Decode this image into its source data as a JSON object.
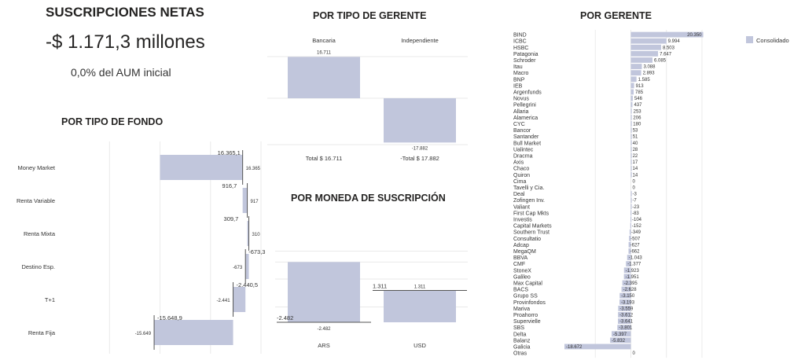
{
  "summary": {
    "title": "SUSCRIPCIONES NETAS",
    "amount": "-$ 1.171,3 millones",
    "pct": "0,0% del AUM inicial"
  },
  "sections": {
    "fondo_title": "POR TIPO DE FONDO",
    "gerente_tipo_title": "POR TIPO DE GERENTE",
    "moneda_title": "POR MONEDA DE SUSCRIPCIÓN",
    "gerente_title": "POR GERENTE"
  },
  "colors": {
    "bar": "#c1c6dc",
    "text": "#252423"
  },
  "chart_data": [
    {
      "id": "fondo",
      "type": "bar",
      "orientation": "horizontal-waterfall",
      "categories": [
        "Money Market",
        "Renta Variable",
        "Renta Mixta",
        "Destino Esp.",
        "T+1",
        "Renta Fija"
      ],
      "values": [
        16365.1,
        916.7,
        309.7,
        -673.3,
        -2440.5,
        -15648.9
      ],
      "data_labels": [
        "16.365,1",
        "916,7",
        "309,7",
        "-673,3",
        "-2.440,5",
        "-15.648,9"
      ],
      "small_labels": [
        "16.365",
        "917",
        "310",
        "-673",
        "-2.441",
        "-15.649"
      ]
    },
    {
      "id": "gerente_tipo",
      "type": "bar",
      "categories": [
        "Bancaria",
        "Independiente"
      ],
      "values": [
        16711,
        -17882
      ],
      "data_labels": [
        "16.711",
        "-17.882"
      ],
      "totals": [
        "Total $ 16.711",
        "-Total $ 17.882"
      ]
    },
    {
      "id": "moneda",
      "type": "bar",
      "categories": [
        "ARS",
        "USD"
      ],
      "values": [
        -2482,
        1311
      ],
      "data_labels": [
        "-2.482",
        "1.311"
      ],
      "small_labels": [
        "-2.482",
        "1.311"
      ]
    },
    {
      "id": "gerente",
      "type": "bar",
      "orientation": "horizontal",
      "legend": [
        "Consolidado"
      ],
      "legend_position": "top-right",
      "categories": [
        "BIND",
        "ICBC",
        "HSBC",
        "Patagonia",
        "Schroder",
        "Itau",
        "Macro",
        "BNP",
        "IEB",
        "Argenfunds",
        "Novus",
        "Pellegrini",
        "Allaria",
        "Alamerica",
        "CYC",
        "Bancor",
        "Santander",
        "Bull Market",
        "Ualintec",
        "Dracma",
        "Axis",
        "Chaco",
        "Quiron",
        "Cima",
        "Tavelli y Cia.",
        "Deal",
        "Zofingen Inv.",
        "Valiant",
        "First Cap Mkts",
        "Investis",
        "Capital Markets",
        "Southern Trust",
        "Consultatio",
        "Adcap",
        "MegaQM",
        "BBVA",
        "CMF",
        "StoneX",
        "Galileo",
        "Max Capital",
        "BACS",
        "Grupo SS",
        "Provinfondos",
        "Mariva",
        "Proahorro",
        "Supervielle",
        "SBS",
        "Delta",
        "Balanz",
        "Galicia",
        "Otras"
      ],
      "values": [
        20350,
        9994,
        8503,
        7647,
        6085,
        3088,
        2893,
        1585,
        913,
        785,
        546,
        437,
        253,
        206,
        180,
        53,
        51,
        40,
        28,
        22,
        17,
        14,
        14,
        0,
        0,
        -3,
        -7,
        -23,
        -83,
        -104,
        -152,
        -349,
        -507,
        -627,
        -662,
        -1043,
        -1377,
        -1923,
        -1951,
        -2395,
        -2628,
        -3150,
        -3193,
        -3559,
        -3612,
        -3641,
        -3801,
        -5397,
        -5832,
        -18672,
        0
      ],
      "data_labels": [
        "20.350",
        "9.994",
        "8.503",
        "7.647",
        "6.085",
        "3.088",
        "2.893",
        "1.585",
        "913",
        "785",
        "546",
        "437",
        "253",
        "206",
        "180",
        "53",
        "51",
        "40",
        "28",
        "22",
        "17",
        "14",
        "14",
        "0",
        "0",
        "-3",
        "-7",
        "-23",
        "-83",
        "-104",
        "-152",
        "-349",
        "-507",
        "-627",
        "-662",
        "-1.043",
        "-1.377",
        "-1.923",
        "-1.951",
        "-2.395",
        "-2.628",
        "-3.150",
        "-3.193",
        "-3.559",
        "-3.612",
        "-3.641",
        "-3.801",
        "-5.397",
        "-5.832",
        "-18.672",
        "0"
      ]
    }
  ]
}
